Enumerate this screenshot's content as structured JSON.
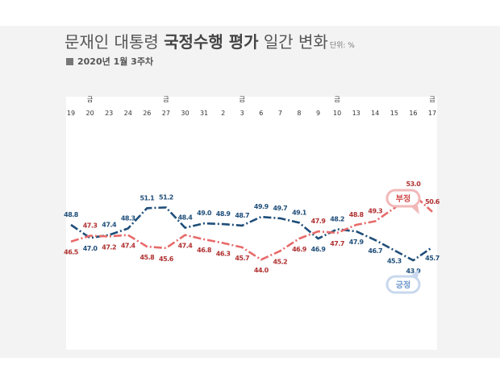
{
  "title": {
    "part1": "문재인 대통령 ",
    "part2": "국정수행 평가",
    "part3": " 일간 변화",
    "unit": "단위: %"
  },
  "subtitle": "2020년 1월 3주차",
  "colors": {
    "positive": "#1f4e79",
    "negative": "#e86a6a",
    "positive_label": "#1f4e79",
    "negative_label": "#b03030",
    "bubble_positive": "#c8d8ee",
    "bubble_negative": "#f2b8b8"
  },
  "chart_data": {
    "type": "line",
    "categories": [
      "19",
      "20",
      "23",
      "24",
      "26",
      "27",
      "30",
      "31",
      "2",
      "3",
      "6",
      "7",
      "8",
      "9",
      "10",
      "13",
      "14",
      "15",
      "16",
      "17"
    ],
    "friday_marker": "금",
    "friday_indices": [
      1,
      5,
      9,
      14,
      19
    ],
    "series": [
      {
        "name": "긍정",
        "values": [
          48.8,
          47.0,
          47.4,
          48.3,
          51.1,
          51.2,
          48.4,
          49.0,
          48.9,
          48.7,
          49.9,
          49.7,
          49.1,
          46.9,
          48.2,
          47.9,
          46.7,
          45.3,
          43.9,
          45.7
        ]
      },
      {
        "name": "부정",
        "values": [
          46.5,
          47.3,
          47.2,
          47.4,
          45.8,
          45.6,
          47.4,
          46.8,
          46.3,
          45.7,
          44.0,
          45.2,
          46.9,
          47.9,
          47.7,
          48.8,
          49.3,
          51.1,
          53.0,
          50.6
        ]
      }
    ],
    "ylim": [
      40,
      60
    ],
    "legend": "bubbles",
    "grid": false
  }
}
